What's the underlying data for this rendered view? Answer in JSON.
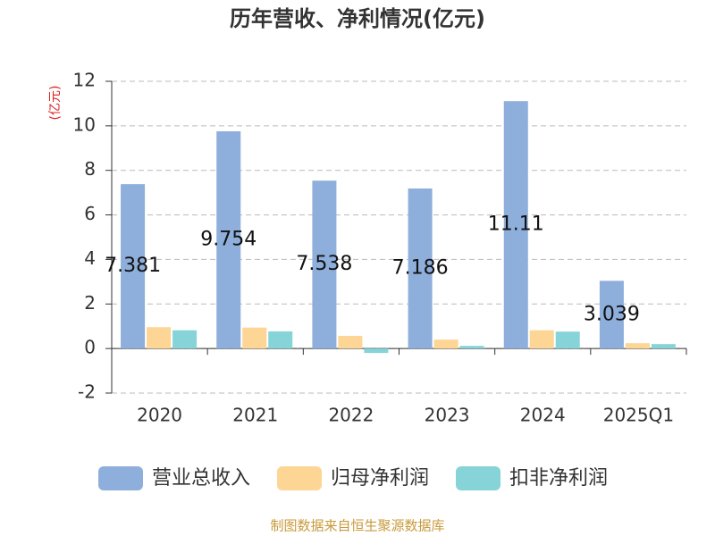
{
  "chart_data": {
    "type": "bar",
    "title": "历年营收、净利情况(亿元)",
    "y_label": "(亿元)",
    "categories": [
      "2020",
      "2021",
      "2022",
      "2023",
      "2024",
      "2025Q1"
    ],
    "series": [
      {
        "name": "营业总收入",
        "color": "#8eaedb",
        "values": [
          7.381,
          9.754,
          7.538,
          7.186,
          11.11,
          3.039
        ]
      },
      {
        "name": "归母净利润",
        "color": "#fdd594",
        "values": [
          0.96,
          0.94,
          0.57,
          0.4,
          0.82,
          0.24
        ]
      },
      {
        "name": "扣非净利润",
        "color": "#87d4d8",
        "values": [
          0.82,
          0.77,
          -0.2,
          0.12,
          0.76,
          0.2
        ]
      }
    ],
    "ylim": [
      -2,
      12
    ],
    "yticks": [
      -2,
      0,
      2,
      4,
      6,
      8,
      10,
      12
    ],
    "grid": true,
    "source": "制图数据来自恒生聚源数据库"
  }
}
